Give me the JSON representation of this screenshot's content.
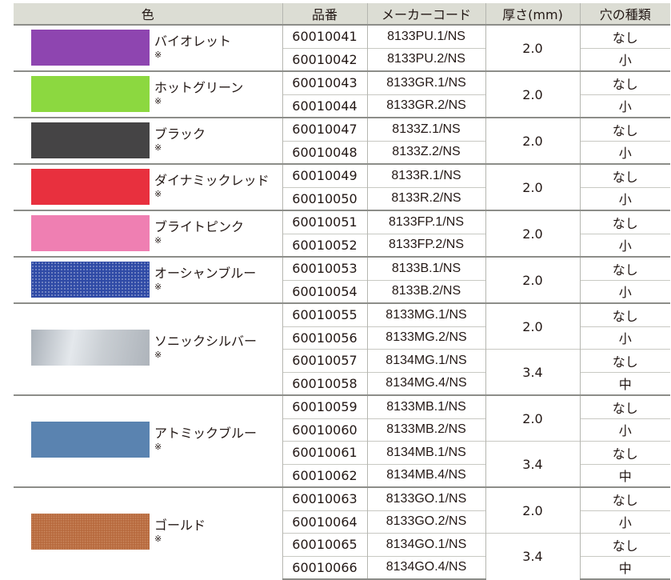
{
  "headers": {
    "color": "色",
    "code": "品番",
    "maker": "メーカーコード",
    "thickness": "厚さ(mm)",
    "hole": "穴の種類"
  },
  "groups": [
    {
      "name": "バイオレット",
      "mark": "※",
      "swatch": "#8e45b0",
      "swatch_style": "solid",
      "rows": [
        {
          "code": "60010041",
          "maker": "8133PU.1/NS",
          "hole": "なし"
        },
        {
          "code": "60010042",
          "maker": "8133PU.2/NS",
          "hole": "小"
        }
      ],
      "thickness": [
        "2.0"
      ]
    },
    {
      "name": "ホットグリーン",
      "mark": "※",
      "swatch": "#8cd840",
      "swatch_style": "solid",
      "rows": [
        {
          "code": "60010043",
          "maker": "8133GR.1/NS",
          "hole": "なし"
        },
        {
          "code": "60010044",
          "maker": "8133GR.2/NS",
          "hole": "小"
        }
      ],
      "thickness": [
        "2.0"
      ]
    },
    {
      "name": "ブラック",
      "mark": "※",
      "swatch": "#454445",
      "swatch_style": "solid",
      "rows": [
        {
          "code": "60010047",
          "maker": "8133Z.1/NS",
          "hole": "なし"
        },
        {
          "code": "60010048",
          "maker": "8133Z.2/NS",
          "hole": "小"
        }
      ],
      "thickness": [
        "2.0"
      ]
    },
    {
      "name": "ダイナミックレッド",
      "mark": "※",
      "swatch": "#e8303e",
      "swatch_style": "solid",
      "rows": [
        {
          "code": "60010049",
          "maker": "8133R.1/NS",
          "hole": "なし"
        },
        {
          "code": "60010050",
          "maker": "8133R.2/NS",
          "hole": "小"
        }
      ],
      "thickness": [
        "2.0"
      ]
    },
    {
      "name": "ブライトピンク",
      "mark": "※",
      "swatch": "#ef7fb2",
      "swatch_style": "solid",
      "rows": [
        {
          "code": "60010051",
          "maker": "8133FP.1/NS",
          "hole": "なし"
        },
        {
          "code": "60010052",
          "maker": "8133FP.2/NS",
          "hole": "小"
        }
      ],
      "thickness": [
        "2.0"
      ]
    },
    {
      "name": "オーシャンブルー",
      "mark": "※",
      "swatch": "#2f4aa6",
      "swatch_style": "dotted",
      "rows": [
        {
          "code": "60010053",
          "maker": "8133B.1/NS",
          "hole": "なし"
        },
        {
          "code": "60010054",
          "maker": "8133B.2/NS",
          "hole": "小"
        }
      ],
      "thickness": [
        "2.0"
      ]
    },
    {
      "name": "ソニックシルバー",
      "mark": "※",
      "swatch": "#c2c7cc",
      "swatch_style": "metallic",
      "rows": [
        {
          "code": "60010055",
          "maker": "8133MG.1/NS",
          "hole": "なし"
        },
        {
          "code": "60010056",
          "maker": "8133MG.2/NS",
          "hole": "小"
        },
        {
          "code": "60010057",
          "maker": "8134MG.1/NS",
          "hole": "なし"
        },
        {
          "code": "60010058",
          "maker": "8134MG.4/NS",
          "hole": "中"
        }
      ],
      "thickness": [
        "2.0",
        "3.4"
      ]
    },
    {
      "name": "アトミックブルー",
      "mark": "※",
      "swatch": "#5a83b0",
      "swatch_style": "solid",
      "rows": [
        {
          "code": "60010059",
          "maker": "8133MB.1/NS",
          "hole": "なし"
        },
        {
          "code": "60010060",
          "maker": "8133MB.2/NS",
          "hole": "小"
        },
        {
          "code": "60010061",
          "maker": "8134MB.1/NS",
          "hole": "なし"
        },
        {
          "code": "60010062",
          "maker": "8134MB.4/NS",
          "hole": "中"
        }
      ],
      "thickness": [
        "2.0",
        "3.4"
      ]
    },
    {
      "name": "ゴールド",
      "mark": "※",
      "swatch": "#b86a3e",
      "swatch_style": "textured",
      "rows": [
        {
          "code": "60010063",
          "maker": "8133GO.1/NS",
          "hole": "なし"
        },
        {
          "code": "60010064",
          "maker": "8133GO.2/NS",
          "hole": "小"
        },
        {
          "code": "60010065",
          "maker": "8134GO.1/NS",
          "hole": "なし"
        },
        {
          "code": "60010066",
          "maker": "8134GO.4/NS",
          "hole": "中"
        }
      ],
      "thickness": [
        "2.0",
        "3.4"
      ]
    }
  ]
}
